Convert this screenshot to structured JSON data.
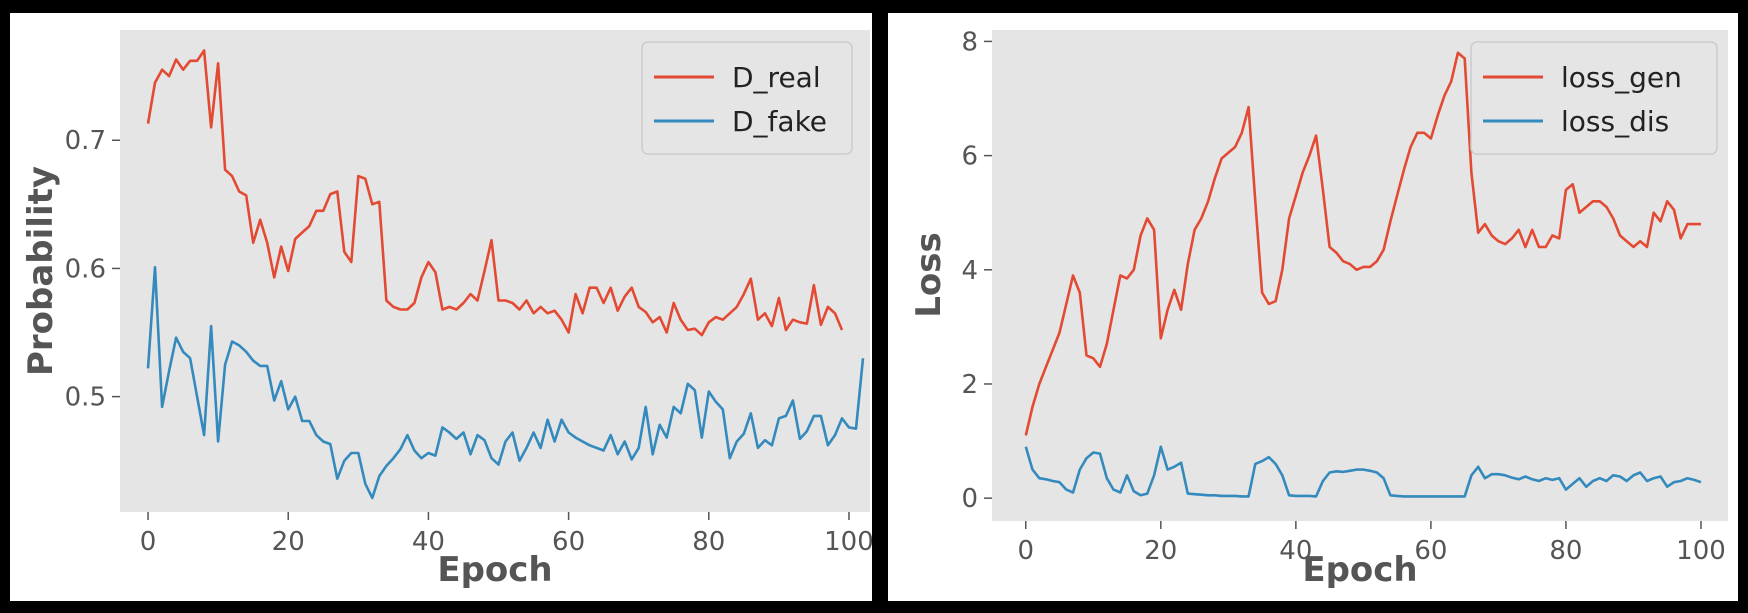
{
  "chart_data": [
    {
      "type": "line",
      "xlabel": "Epoch",
      "ylabel": "Probability",
      "xlim": [
        -4,
        103
      ],
      "ylim": [
        0.41,
        0.786
      ],
      "xticks": [
        0,
        20,
        40,
        60,
        80,
        100
      ],
      "yticks": [
        0.5,
        0.6,
        0.7
      ],
      "ytick_labels": [
        "0.5",
        "0.6",
        "0.7"
      ],
      "grid": false,
      "background": "#e5e5e5",
      "legend_position": "top-right",
      "series": [
        {
          "name": "D_real",
          "color": "#e24a33",
          "values": [
            0.713,
            0.745,
            0.755,
            0.75,
            0.763,
            0.755,
            0.762,
            0.762,
            0.77,
            0.71,
            0.76,
            0.677,
            0.672,
            0.66,
            0.657,
            0.62,
            0.638,
            0.62,
            0.593,
            0.617,
            0.598,
            0.623,
            0.628,
            0.633,
            0.645,
            0.645,
            0.658,
            0.66,
            0.613,
            0.605,
            0.672,
            0.67,
            0.65,
            0.652,
            0.575,
            0.57,
            0.568,
            0.568,
            0.573,
            0.593,
            0.605,
            0.597,
            0.568,
            0.57,
            0.568,
            0.573,
            0.58,
            0.575,
            0.598,
            0.622,
            0.575,
            0.575,
            0.573,
            0.568,
            0.575,
            0.565,
            0.57,
            0.565,
            0.567,
            0.56,
            0.55,
            0.58,
            0.565,
            0.585,
            0.585,
            0.573,
            0.585,
            0.567,
            0.578,
            0.585,
            0.57,
            0.566,
            0.558,
            0.562,
            0.55,
            0.573,
            0.56,
            0.552,
            0.553,
            0.548,
            0.558,
            0.562,
            0.56,
            0.565,
            0.57,
            0.58,
            0.592,
            0.56,
            0.565,
            0.555,
            0.577,
            0.552,
            0.56,
            0.558,
            0.557,
            0.587,
            0.556,
            0.57,
            0.565,
            0.552
          ]
        },
        {
          "name": "D_fake",
          "color": "#348abd",
          "values": [
            0.522,
            0.601,
            0.492,
            0.52,
            0.546,
            0.535,
            0.53,
            0.5,
            0.47,
            0.555,
            0.465,
            0.525,
            0.543,
            0.54,
            0.535,
            0.528,
            0.524,
            0.524,
            0.497,
            0.512,
            0.49,
            0.5,
            0.481,
            0.481,
            0.47,
            0.465,
            0.463,
            0.436,
            0.45,
            0.456,
            0.456,
            0.432,
            0.421,
            0.438,
            0.446,
            0.452,
            0.459,
            0.47,
            0.458,
            0.452,
            0.456,
            0.454,
            0.476,
            0.472,
            0.467,
            0.472,
            0.455,
            0.47,
            0.466,
            0.452,
            0.447,
            0.465,
            0.472,
            0.45,
            0.46,
            0.472,
            0.46,
            0.482,
            0.465,
            0.482,
            0.472,
            0.468,
            0.465,
            0.462,
            0.46,
            0.458,
            0.47,
            0.455,
            0.465,
            0.451,
            0.46,
            0.492,
            0.455,
            0.478,
            0.468,
            0.492,
            0.487,
            0.51,
            0.505,
            0.468,
            0.504,
            0.496,
            0.49,
            0.452,
            0.465,
            0.471,
            0.487,
            0.46,
            0.466,
            0.462,
            0.483,
            0.485,
            0.497,
            0.467,
            0.473,
            0.485,
            0.485,
            0.462,
            0.47,
            0.483,
            0.476,
            0.475,
            0.53
          ]
        }
      ]
    },
    {
      "type": "line",
      "xlabel": "Epoch",
      "ylabel": "Loss",
      "xlim": [
        -5,
        104
      ],
      "ylim": [
        -0.4,
        8.2
      ],
      "xticks": [
        0,
        20,
        40,
        60,
        80,
        100
      ],
      "yticks": [
        0,
        2,
        4,
        6,
        8
      ],
      "ytick_labels": [
        "0",
        "2",
        "4",
        "6",
        "8"
      ],
      "grid": false,
      "background": "#e5e5e5",
      "legend_position": "top-right",
      "series": [
        {
          "name": "loss_gen",
          "color": "#e24a33",
          "values": [
            1.1,
            1.6,
            2.0,
            2.3,
            2.6,
            2.9,
            3.4,
            3.9,
            3.6,
            2.5,
            2.45,
            2.3,
            2.7,
            3.3,
            3.9,
            3.85,
            4.0,
            4.6,
            4.9,
            4.7,
            2.8,
            3.3,
            3.65,
            3.3,
            4.1,
            4.7,
            4.9,
            5.2,
            5.6,
            5.95,
            6.05,
            6.15,
            6.4,
            6.85,
            5.2,
            3.6,
            3.4,
            3.45,
            4.0,
            4.9,
            5.3,
            5.7,
            6.0,
            6.35,
            5.4,
            4.4,
            4.3,
            4.15,
            4.1,
            4.0,
            4.05,
            4.05,
            4.15,
            4.35,
            4.85,
            5.3,
            5.75,
            6.15,
            6.4,
            6.4,
            6.3,
            6.7,
            7.05,
            7.3,
            7.8,
            7.7,
            5.7,
            4.65,
            4.8,
            4.6,
            4.5,
            4.45,
            4.55,
            4.7,
            4.4,
            4.7,
            4.4,
            4.4,
            4.6,
            4.55,
            5.4,
            5.5,
            5.0,
            5.1,
            5.2,
            5.2,
            5.1,
            4.9,
            4.6,
            4.5,
            4.4,
            4.5,
            4.4,
            5.0,
            4.85,
            5.2,
            5.05,
            4.55,
            4.8,
            4.8,
            4.8
          ]
        },
        {
          "name": "loss_dis",
          "color": "#348abd",
          "values": [
            0.9,
            0.5,
            0.35,
            0.33,
            0.3,
            0.28,
            0.15,
            0.1,
            0.5,
            0.7,
            0.8,
            0.78,
            0.35,
            0.15,
            0.1,
            0.4,
            0.12,
            0.05,
            0.08,
            0.4,
            0.9,
            0.5,
            0.55,
            0.62,
            0.08,
            0.07,
            0.06,
            0.05,
            0.05,
            0.04,
            0.04,
            0.04,
            0.03,
            0.03,
            0.6,
            0.65,
            0.72,
            0.6,
            0.4,
            0.05,
            0.04,
            0.04,
            0.04,
            0.03,
            0.3,
            0.45,
            0.47,
            0.46,
            0.48,
            0.5,
            0.5,
            0.48,
            0.45,
            0.35,
            0.05,
            0.04,
            0.03,
            0.03,
            0.03,
            0.03,
            0.03,
            0.03,
            0.03,
            0.03,
            0.03,
            0.03,
            0.4,
            0.55,
            0.35,
            0.42,
            0.42,
            0.4,
            0.36,
            0.33,
            0.38,
            0.33,
            0.3,
            0.35,
            0.32,
            0.35,
            0.15,
            0.25,
            0.35,
            0.2,
            0.3,
            0.35,
            0.3,
            0.4,
            0.38,
            0.3,
            0.4,
            0.45,
            0.3,
            0.35,
            0.38,
            0.2,
            0.28,
            0.3,
            0.35,
            0.32,
            0.28
          ]
        }
      ]
    }
  ]
}
